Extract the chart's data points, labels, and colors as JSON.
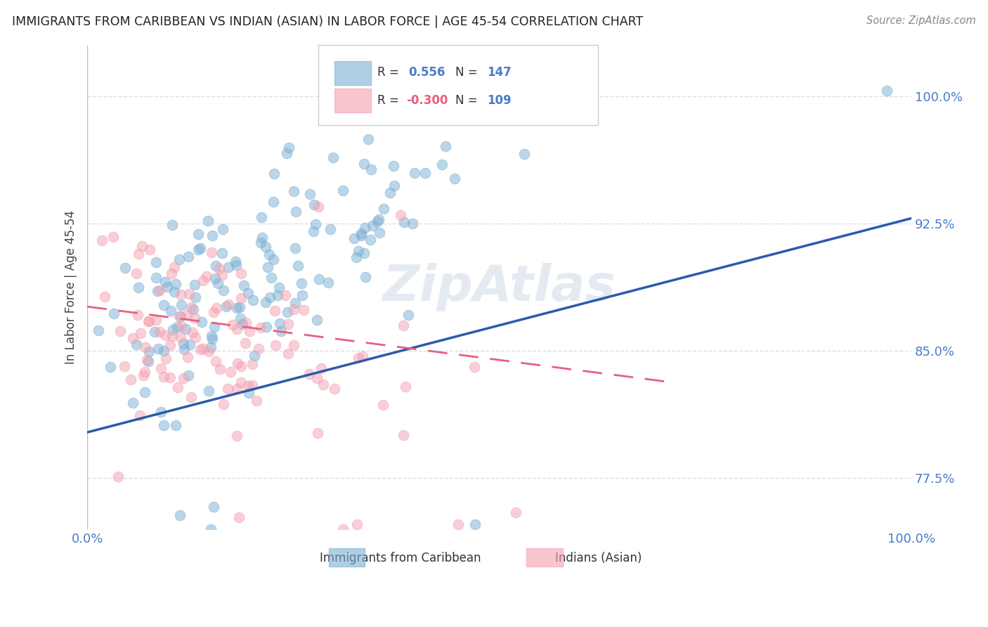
{
  "title": "IMMIGRANTS FROM CARIBBEAN VS INDIAN (ASIAN) IN LABOR FORCE | AGE 45-54 CORRELATION CHART",
  "source": "Source: ZipAtlas.com",
  "ylabel": "In Labor Force | Age 45-54",
  "xlim": [
    0.0,
    1.0
  ],
  "ylim": [
    0.745,
    1.03
  ],
  "yticks": [
    0.775,
    0.85,
    0.925,
    1.0
  ],
  "ytick_labels": [
    "77.5%",
    "85.0%",
    "92.5%",
    "100.0%"
  ],
  "xtick_labels": [
    "0.0%",
    "100.0%"
  ],
  "blue_R": 0.556,
  "blue_N": 147,
  "pink_R": -0.3,
  "pink_N": 109,
  "blue_color": "#7BAFD4",
  "pink_color": "#F4A0B0",
  "trend_blue_color": "#2A5BAD",
  "trend_pink_color": "#E86080",
  "background_color": "#FFFFFF",
  "grid_color": "#D8DCE8",
  "title_color": "#222222",
  "axis_label_color": "#444444",
  "tick_label_color": "#4A7CC7",
  "watermark_color": "#C0CCE0",
  "legend_label_blue": "Immigrants from Caribbean",
  "legend_label_pink": "Indians (Asian)",
  "blue_line_x": [
    0.0,
    1.0
  ],
  "blue_line_y": [
    0.802,
    0.928
  ],
  "pink_line_x": [
    0.0,
    0.7
  ],
  "pink_line_y": [
    0.876,
    0.832
  ],
  "seed": 99,
  "figsize": [
    14.06,
    8.92
  ],
  "dpi": 100
}
